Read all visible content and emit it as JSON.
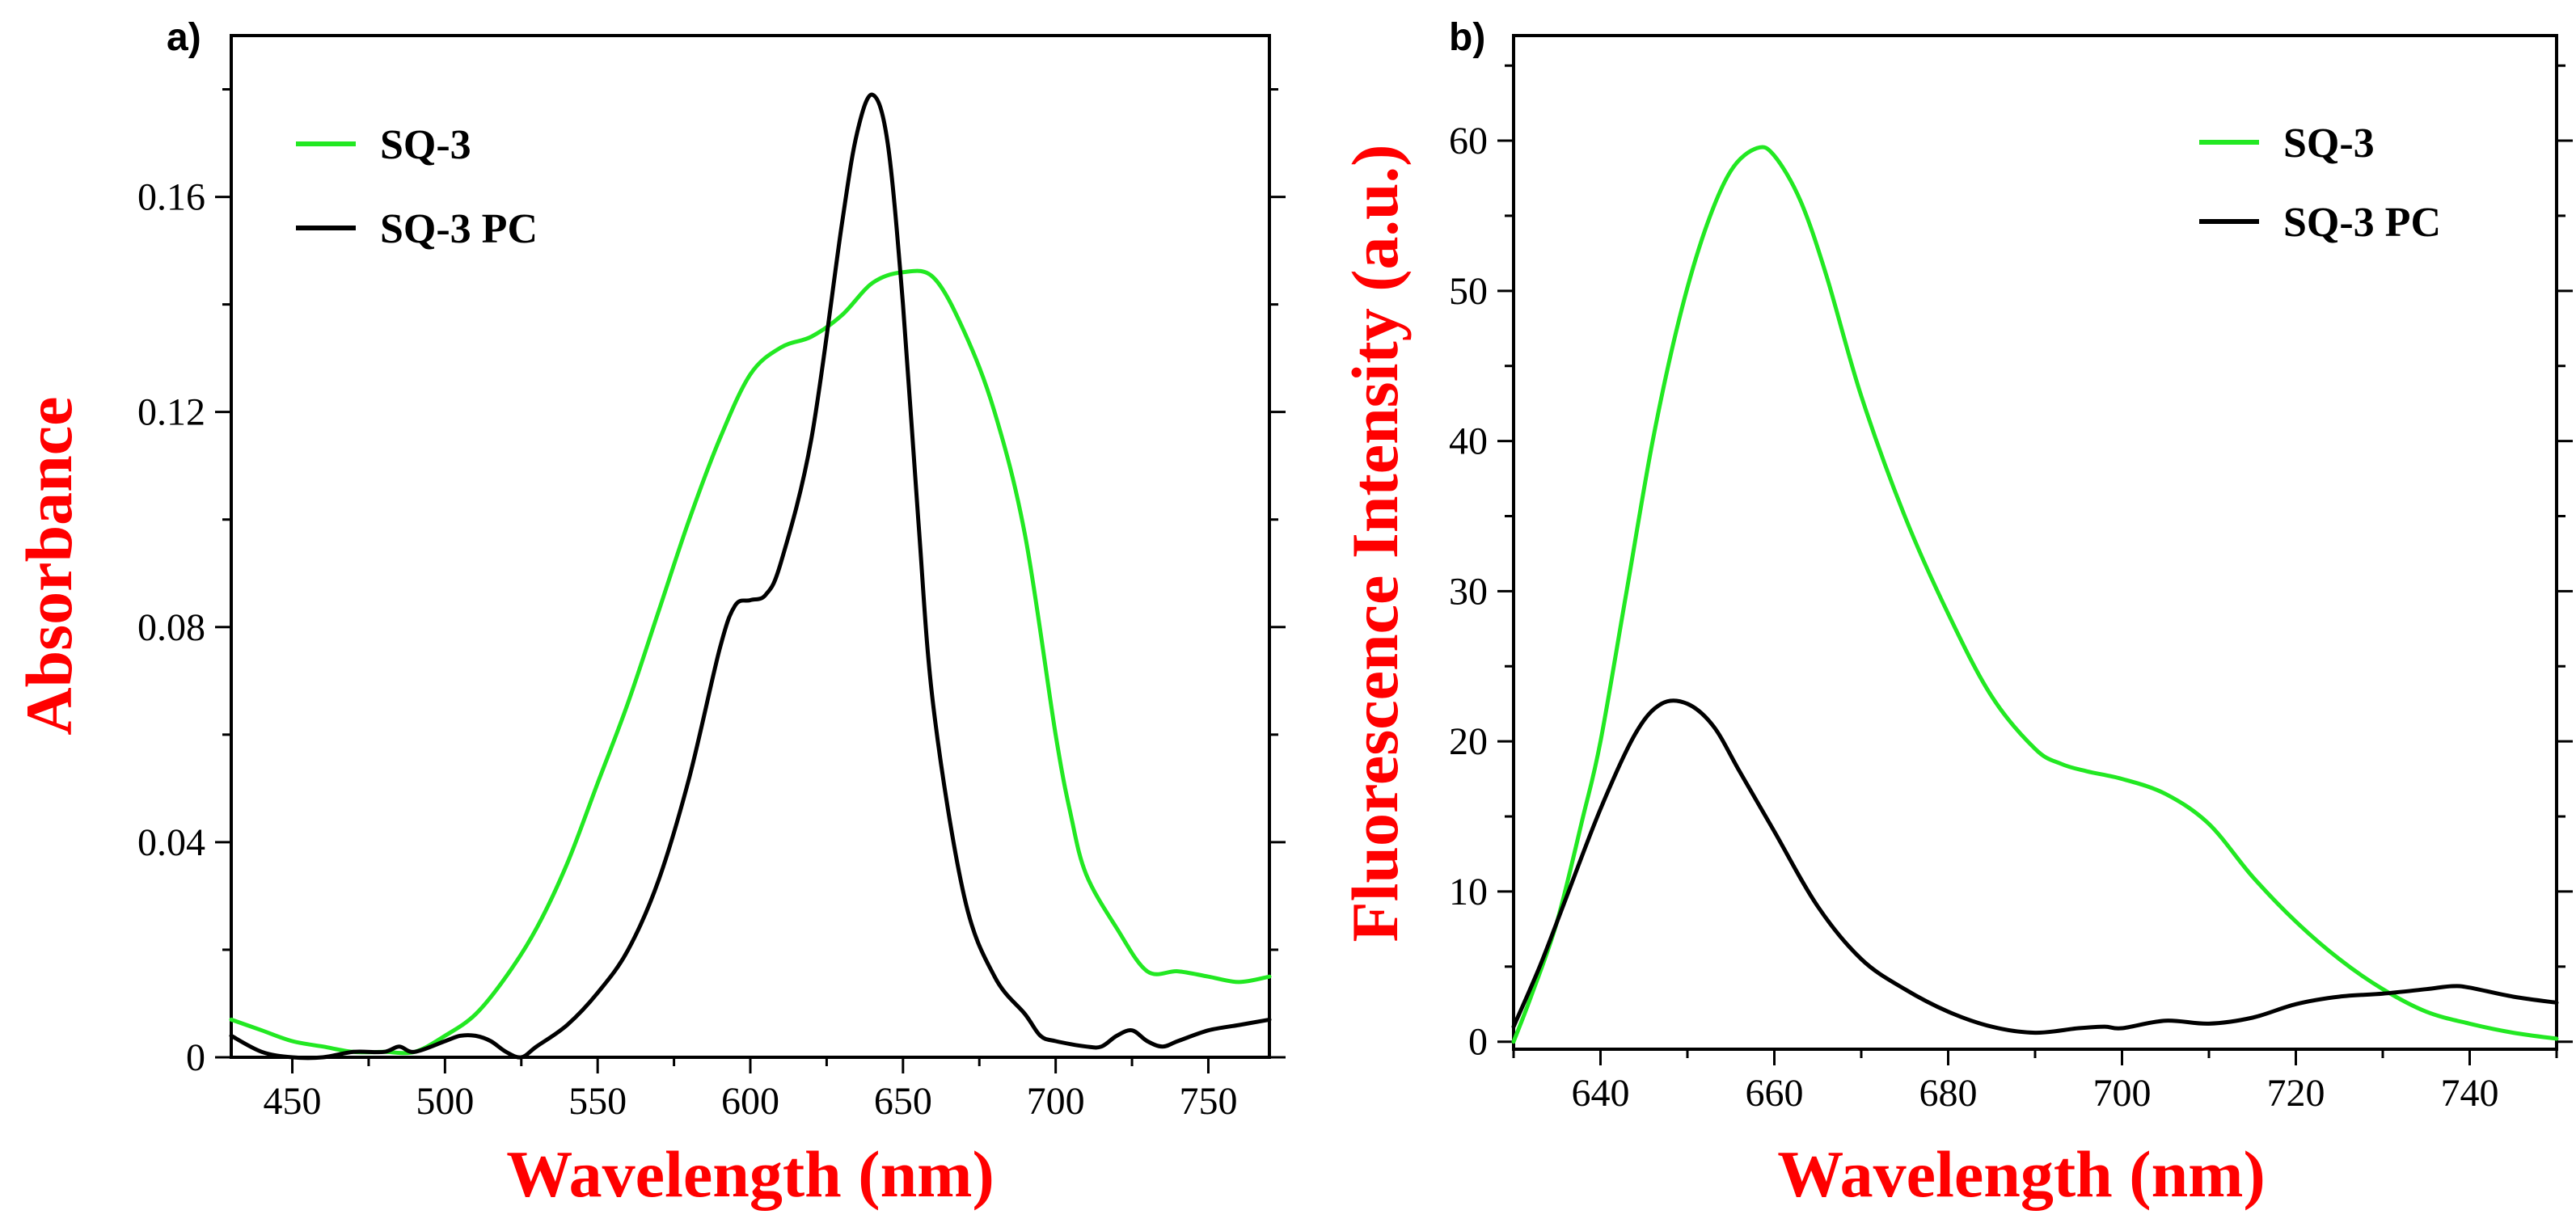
{
  "colors": {
    "sq3": "#22e822",
    "sq3pc": "#000000",
    "axis_title": "#ff0000"
  },
  "chart_data": [
    {
      "panel_label": "a)",
      "type": "line",
      "xlabel": "Wavelength (nm)",
      "ylabel": "Absorbance",
      "xlim": [
        430,
        770
      ],
      "ylim": [
        0,
        0.19
      ],
      "xticks": [
        450,
        500,
        550,
        600,
        650,
        700,
        750
      ],
      "yticks": [
        0,
        0.04,
        0.08,
        0.12,
        0.16
      ],
      "ytick_labels": [
        "0",
        "0.04",
        "0.08",
        "0.12",
        "0.16"
      ],
      "legend": {
        "position": "top-left"
      },
      "series": [
        {
          "name": "SQ-3",
          "color_key": "sq3",
          "x": [
            430,
            440,
            450,
            460,
            470,
            480,
            490,
            500,
            510,
            520,
            530,
            540,
            550,
            560,
            570,
            580,
            590,
            600,
            610,
            620,
            630,
            640,
            650,
            660,
            670,
            680,
            690,
            700,
            705,
            710,
            720,
            730,
            740,
            750,
            760,
            770
          ],
          "y": [
            0.007,
            0.005,
            0.003,
            0.002,
            0.001,
            0.001,
            0.001,
            0.004,
            0.008,
            0.015,
            0.024,
            0.036,
            0.051,
            0.066,
            0.083,
            0.1,
            0.115,
            0.127,
            0.132,
            0.134,
            0.138,
            0.144,
            0.146,
            0.145,
            0.135,
            0.12,
            0.097,
            0.06,
            0.045,
            0.034,
            0.024,
            0.016,
            0.016,
            0.015,
            0.014,
            0.015
          ]
        },
        {
          "name": "SQ-3 PC",
          "color_key": "sq3pc",
          "x": [
            430,
            440,
            450,
            460,
            470,
            480,
            485,
            490,
            500,
            505,
            510,
            515,
            520,
            525,
            530,
            540,
            550,
            560,
            570,
            580,
            590,
            595,
            600,
            605,
            610,
            620,
            630,
            635,
            640,
            645,
            650,
            655,
            660,
            670,
            680,
            690,
            695,
            700,
            710,
            715,
            720,
            725,
            730,
            735,
            740,
            750,
            760,
            770
          ],
          "y": [
            0.004,
            0.001,
            0.0,
            0.0,
            0.001,
            0.001,
            0.002,
            0.001,
            0.003,
            0.004,
            0.004,
            0.003,
            0.001,
            0.0,
            0.002,
            0.006,
            0.012,
            0.02,
            0.033,
            0.052,
            0.076,
            0.084,
            0.085,
            0.086,
            0.092,
            0.115,
            0.155,
            0.172,
            0.179,
            0.17,
            0.14,
            0.1,
            0.065,
            0.03,
            0.015,
            0.008,
            0.004,
            0.003,
            0.002,
            0.002,
            0.004,
            0.005,
            0.003,
            0.002,
            0.003,
            0.005,
            0.006,
            0.007
          ]
        }
      ]
    },
    {
      "panel_label": "b)",
      "type": "line",
      "xlabel": "Wavelength (nm)",
      "ylabel": "Fluorescence Intensity (a.u.)",
      "xlim": [
        630,
        750
      ],
      "ylim": [
        -0.5,
        67
      ],
      "xticks": [
        640,
        660,
        680,
        700,
        720,
        740
      ],
      "yticks": [
        0,
        10,
        20,
        30,
        40,
        50,
        60
      ],
      "ytick_labels": [
        "0",
        "10",
        "20",
        "30",
        "40",
        "50",
        "60"
      ],
      "legend": {
        "position": "top-right"
      },
      "series": [
        {
          "name": "SQ-3",
          "color_key": "sq3",
          "x": [
            630,
            632,
            635,
            638,
            640,
            643,
            646,
            649,
            652,
            655,
            658,
            660,
            663,
            666,
            670,
            675,
            680,
            685,
            690,
            693,
            696,
            700,
            705,
            710,
            715,
            720,
            725,
            730,
            735,
            740,
            745,
            750
          ],
          "y": [
            0,
            3,
            8,
            15,
            20,
            30,
            40,
            48,
            54,
            58,
            59.5,
            59,
            56,
            51,
            43,
            35,
            28.5,
            23,
            19.5,
            18.5,
            18,
            17.5,
            16.5,
            14.5,
            11,
            8,
            5.5,
            3.5,
            2,
            1.2,
            0.6,
            0.2
          ]
        },
        {
          "name": "SQ-3 PC",
          "color_key": "sq3pc",
          "x": [
            630,
            633,
            636,
            640,
            644,
            647,
            650,
            653,
            656,
            660,
            665,
            670,
            675,
            680,
            685,
            690,
            695,
            698,
            700,
            705,
            710,
            715,
            720,
            725,
            730,
            735,
            738,
            740,
            745,
            750
          ],
          "y": [
            1,
            5,
            9.5,
            15.5,
            20.5,
            22.5,
            22.5,
            21,
            18,
            14,
            9,
            5.5,
            3.5,
            2,
            1,
            0.6,
            0.9,
            1,
            0.9,
            1.4,
            1.2,
            1.6,
            2.5,
            3,
            3.2,
            3.5,
            3.7,
            3.6,
            3,
            2.6
          ]
        }
      ]
    }
  ]
}
